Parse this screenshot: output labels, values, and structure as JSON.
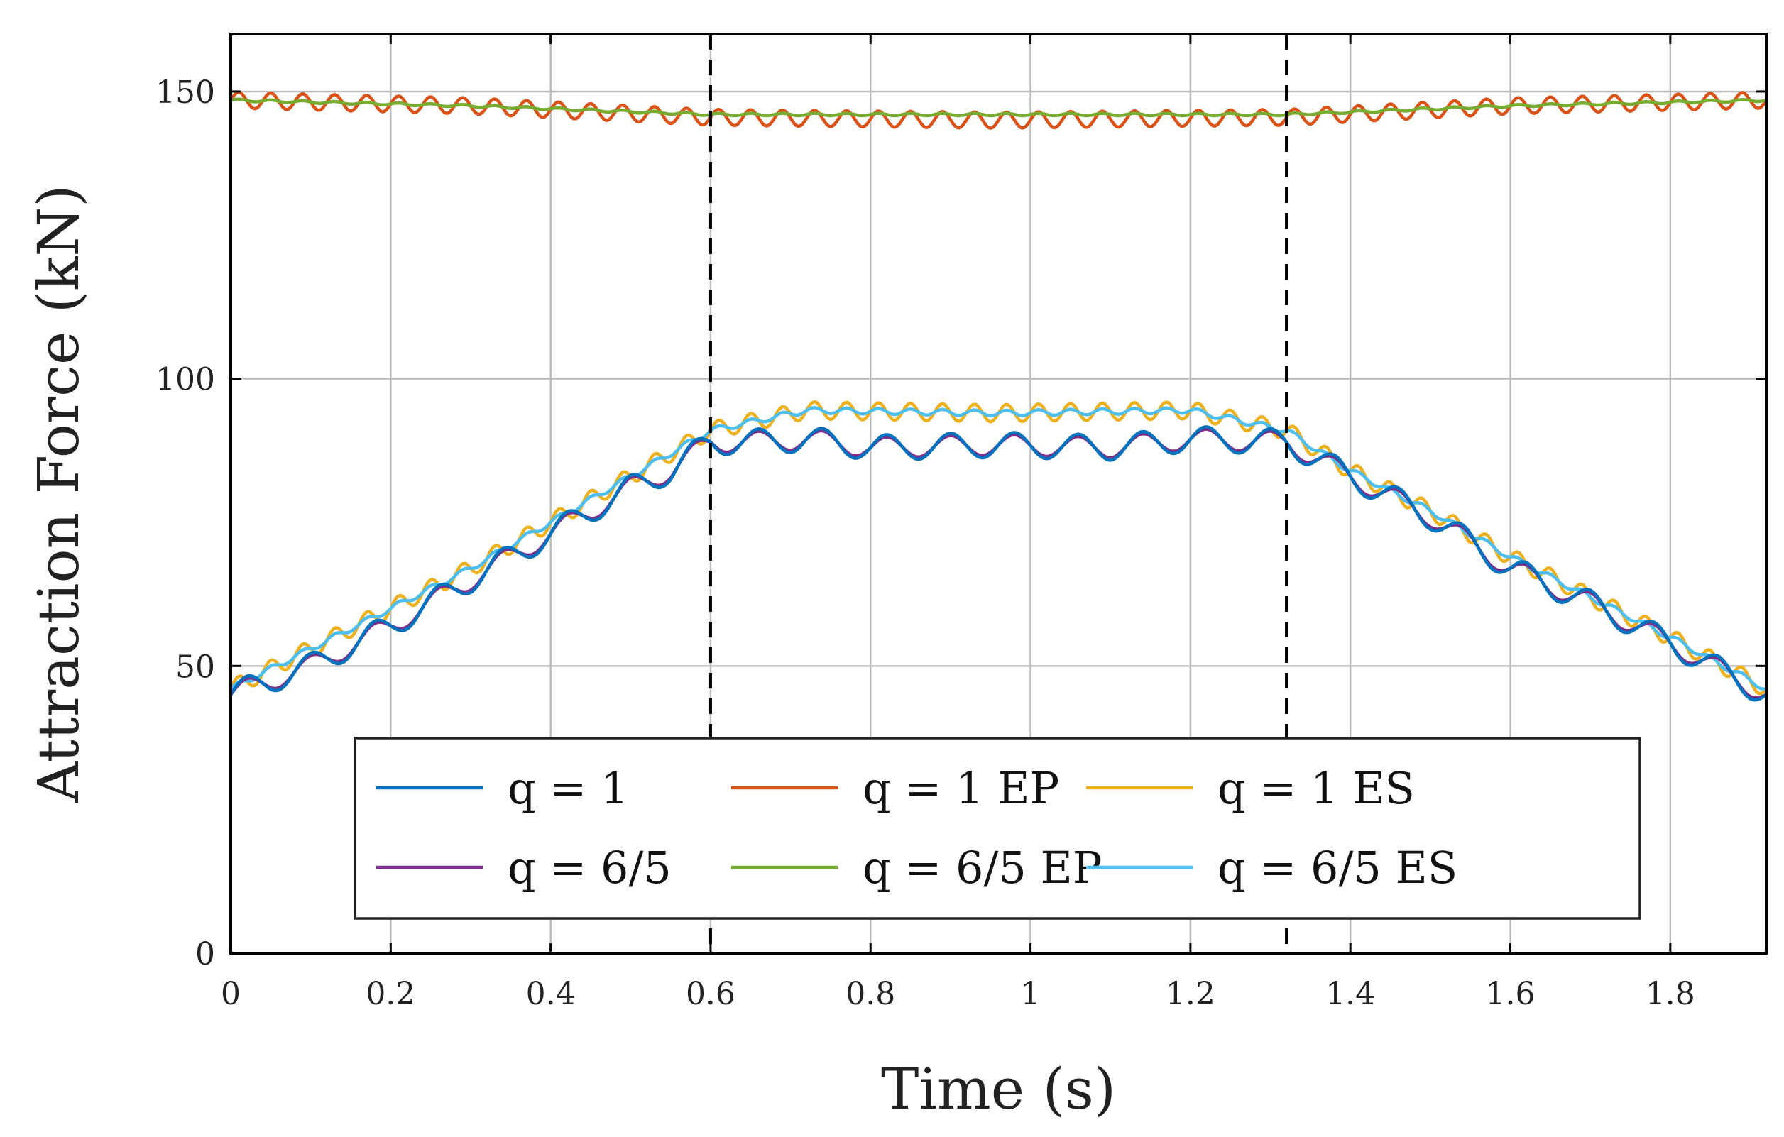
{
  "chart_data": {
    "type": "line",
    "xlabel": "Time (s)",
    "ylabel": "Attraction Force (kN)",
    "xlim": [
      0,
      1.92
    ],
    "ylim": [
      0,
      160
    ],
    "grid": true,
    "x_ticks": [
      0,
      0.2,
      0.4,
      0.6,
      0.8,
      1,
      1.2,
      1.4,
      1.6,
      1.8
    ],
    "x_tick_labels": [
      "0",
      "0.2",
      "0.4",
      "0.6",
      "0.8",
      "1",
      "1.2",
      "1.4",
      "1.6",
      "1.8"
    ],
    "y_ticks": [
      0,
      50,
      100,
      150
    ],
    "y_tick_labels": [
      "0",
      "50",
      "100",
      "150"
    ],
    "vertical_markers": [
      0.6,
      1.32
    ],
    "legend_position": "bottom-center",
    "series": [
      {
        "name": "q = 1",
        "color": "#0072BD",
        "points": [
          [
            0,
            45
          ],
          [
            0.1,
            50
          ],
          [
            0.2,
            57
          ],
          [
            0.3,
            65
          ],
          [
            0.4,
            73
          ],
          [
            0.5,
            81
          ],
          [
            0.55,
            84
          ],
          [
            0.6,
            89
          ],
          [
            0.65,
            89
          ],
          [
            0.72,
            89.5
          ],
          [
            0.8,
            88
          ],
          [
            0.96,
            88.5
          ],
          [
            1.1,
            88
          ],
          [
            1.2,
            89.5
          ],
          [
            1.32,
            89
          ],
          [
            1.4,
            83
          ],
          [
            1.5,
            76
          ],
          [
            1.6,
            67
          ],
          [
            1.7,
            61
          ],
          [
            1.8,
            54
          ],
          [
            1.92,
            45
          ]
        ],
        "ripple": {
          "amplitude": 2.2,
          "period": 0.08
        }
      },
      {
        "name": "q = 1 EP",
        "color": "#D95319",
        "points": [
          [
            0,
            148.5
          ],
          [
            0.3,
            147.5
          ],
          [
            0.6,
            145.5
          ],
          [
            0.96,
            145
          ],
          [
            1.32,
            145.5
          ],
          [
            1.6,
            147.5
          ],
          [
            1.92,
            148.5
          ]
        ],
        "ripple": {
          "amplitude": 1.4,
          "period": 0.04
        }
      },
      {
        "name": "q = 1 ES",
        "color": "#EDB120",
        "points": [
          [
            0,
            46
          ],
          [
            0.1,
            53
          ],
          [
            0.2,
            60
          ],
          [
            0.3,
            67
          ],
          [
            0.4,
            75
          ],
          [
            0.5,
            83
          ],
          [
            0.6,
            91
          ],
          [
            0.72,
            94.5
          ],
          [
            0.96,
            94
          ],
          [
            1.2,
            94.5
          ],
          [
            1.32,
            91
          ],
          [
            1.4,
            84
          ],
          [
            1.5,
            77
          ],
          [
            1.6,
            69
          ],
          [
            1.7,
            62
          ],
          [
            1.8,
            55
          ],
          [
            1.92,
            46
          ]
        ],
        "ripple": {
          "amplitude": 1.5,
          "period": 0.04
        }
      },
      {
        "name": "q = 6/5",
        "color": "#7E2F8E",
        "points": [
          [
            0,
            45
          ],
          [
            0.1,
            50
          ],
          [
            0.2,
            57
          ],
          [
            0.3,
            65
          ],
          [
            0.4,
            73
          ],
          [
            0.5,
            81
          ],
          [
            0.55,
            84
          ],
          [
            0.6,
            89
          ],
          [
            0.65,
            89
          ],
          [
            0.72,
            89.5
          ],
          [
            0.8,
            88
          ],
          [
            0.96,
            88.5
          ],
          [
            1.1,
            88
          ],
          [
            1.2,
            89.5
          ],
          [
            1.32,
            89
          ],
          [
            1.4,
            83
          ],
          [
            1.5,
            76
          ],
          [
            1.6,
            67
          ],
          [
            1.7,
            61
          ],
          [
            1.8,
            54
          ],
          [
            1.92,
            45
          ]
        ],
        "ripple": {
          "amplitude": 1.8,
          "period": 0.08
        }
      },
      {
        "name": "q = 6/5 EP",
        "color": "#77AC30",
        "points": [
          [
            0,
            148.5
          ],
          [
            0.3,
            147.5
          ],
          [
            0.6,
            146
          ],
          [
            0.96,
            146
          ],
          [
            1.32,
            146
          ],
          [
            1.6,
            147.5
          ],
          [
            1.92,
            148.5
          ]
        ],
        "ripple": {
          "amplitude": 0.2,
          "period": 0.04
        }
      },
      {
        "name": "q = 6/5 ES",
        "color": "#4DBEEE",
        "points": [
          [
            0,
            46
          ],
          [
            0.1,
            53
          ],
          [
            0.2,
            60
          ],
          [
            0.3,
            67
          ],
          [
            0.4,
            75
          ],
          [
            0.5,
            83
          ],
          [
            0.6,
            91
          ],
          [
            0.72,
            94.5
          ],
          [
            0.96,
            94
          ],
          [
            1.2,
            94.5
          ],
          [
            1.32,
            91
          ],
          [
            1.4,
            84
          ],
          [
            1.5,
            77
          ],
          [
            1.6,
            69
          ],
          [
            1.7,
            62
          ],
          [
            1.8,
            55
          ],
          [
            1.92,
            46
          ]
        ],
        "ripple": {
          "amplitude": 0.5,
          "period": 0.04
        }
      }
    ]
  },
  "legend": {
    "entries": [
      {
        "label": "q = 1",
        "color": "#0072BD"
      },
      {
        "label": "q = 1 EP",
        "color": "#D95319"
      },
      {
        "label": "q = 1 ES",
        "color": "#EDB120"
      },
      {
        "label": "q = 6/5",
        "color": "#7E2F8E"
      },
      {
        "label": "q = 6/5 EP",
        "color": "#77AC30"
      },
      {
        "label": "q = 6/5 ES",
        "color": "#4DBEEE"
      }
    ]
  },
  "colors": {
    "grid": "#bdbdbd",
    "axis": "#000000",
    "marker": "#000000"
  }
}
